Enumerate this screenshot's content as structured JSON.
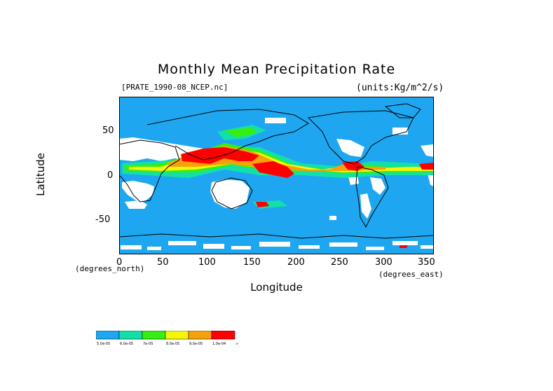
{
  "title": "Monthly Mean Precipitation Rate",
  "source_label": "[PRATE_1990-08_NCEP.nc]",
  "units_label": "(units:Kg/m^2/s)",
  "x_axis": {
    "label": "Longitude",
    "note_left": "(degrees_north)",
    "note_right": "(degrees_east)",
    "ticks": [
      "0",
      "50",
      "100",
      "150",
      "200",
      "250",
      "300",
      "350"
    ],
    "range": [
      0,
      357.5
    ]
  },
  "y_axis": {
    "label": "Latitude",
    "ticks": [
      "50",
      "0",
      "-50"
    ],
    "range": [
      -90,
      90
    ]
  },
  "colors": {
    "base": "#1ea7f0",
    "land": "#ffffff",
    "c2": "#13e0a8",
    "c3": "#36ee11",
    "c4": "#f5f50c",
    "c5": "#f5a10c",
    "c6": "#ff0000"
  },
  "colorbar": {
    "labels": [
      "5.0e-05",
      "6.0e-05",
      "7e-05",
      "8.0e-05",
      "9.0e-05",
      "1.0e-04",
      "∞"
    ],
    "colors": [
      "#1ea7f0",
      "#13e0a8",
      "#36ee11",
      "#f5f50c",
      "#f5a10c",
      "#ff0000"
    ]
  }
}
